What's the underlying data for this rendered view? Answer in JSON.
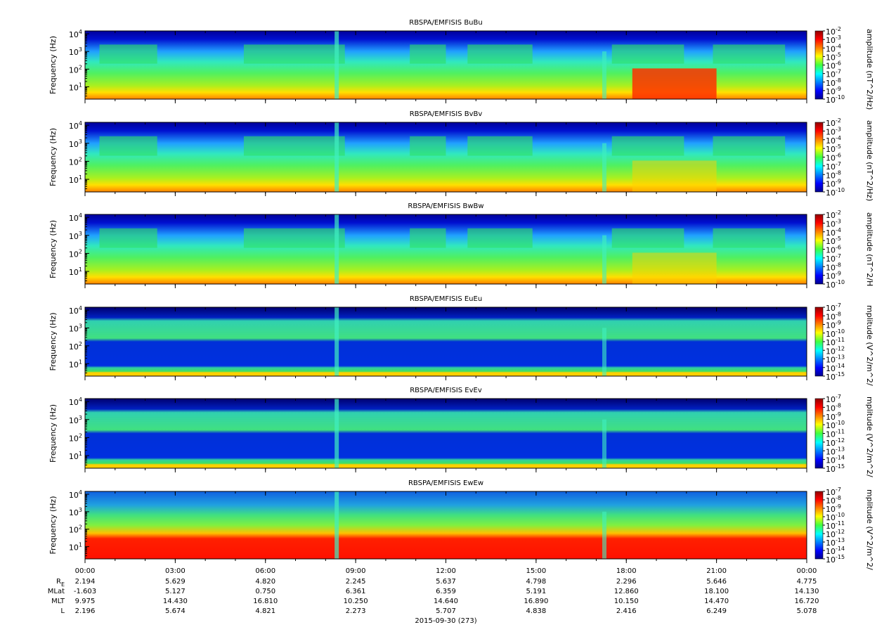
{
  "x_axis": {
    "xlim": [
      0,
      24
    ],
    "xticks": [
      {
        "value": 0,
        "label": "00:00"
      },
      {
        "value": 3,
        "label": "03:00"
      },
      {
        "value": 6,
        "label": "06:00"
      },
      {
        "value": 9,
        "label": "09:00"
      },
      {
        "value": 12,
        "label": "12:00"
      },
      {
        "value": 15,
        "label": "15:00"
      },
      {
        "value": 18,
        "label": "18:00"
      },
      {
        "value": 21,
        "label": "21:00"
      },
      {
        "value": 24,
        "label": "00:00"
      }
    ]
  },
  "chart_data": [
    {
      "type": "spectrogram",
      "title": "RBSPA/EMFISIS  BuBu",
      "ylabel": "Frequency (Hz)",
      "yscale": "log",
      "ylim": [
        2,
        14500
      ],
      "yticks": [
        {
          "value": 10,
          "label": "10^1"
        },
        {
          "value": 100,
          "label": "10^2"
        },
        {
          "value": 1000,
          "label": "10^3"
        },
        {
          "value": 10000,
          "label": "10^4"
        }
      ],
      "colorbar": {
        "label": "amplitude (nT^2/Hz)",
        "scale": "log",
        "lim": [
          1e-10,
          0.01
        ],
        "ticks": [
          {
            "value": 0.01,
            "label": "10^-2"
          },
          {
            "value": 0.001,
            "label": "10^-3"
          },
          {
            "value": 0.0001,
            "label": "10^-4"
          },
          {
            "value": 1e-05,
            "label": "10^-5"
          },
          {
            "value": 1e-06,
            "label": "10^-6"
          },
          {
            "value": 1e-07,
            "label": "10^-7"
          },
          {
            "value": 1e-08,
            "label": "10^-8"
          },
          {
            "value": 1e-09,
            "label": "10^-9"
          },
          {
            "value": 1e-10,
            "label": "10^-10"
          }
        ]
      }
    },
    {
      "type": "spectrogram",
      "title": "RBSPA/EMFISIS  BvBv",
      "ylabel": "Frequency (Hz)",
      "yscale": "log",
      "ylim": [
        2,
        14500
      ],
      "yticks": [
        {
          "value": 10,
          "label": "10^1"
        },
        {
          "value": 100,
          "label": "10^2"
        },
        {
          "value": 1000,
          "label": "10^3"
        },
        {
          "value": 10000,
          "label": "10^4"
        }
      ],
      "colorbar": {
        "label": "amplitude (nT^2/Hz)",
        "scale": "log",
        "lim": [
          1e-10,
          0.01
        ],
        "ticks": [
          {
            "value": 0.01,
            "label": "10^-2"
          },
          {
            "value": 0.001,
            "label": "10^-3"
          },
          {
            "value": 0.0001,
            "label": "10^-4"
          },
          {
            "value": 1e-05,
            "label": "10^-5"
          },
          {
            "value": 1e-06,
            "label": "10^-6"
          },
          {
            "value": 1e-07,
            "label": "10^-7"
          },
          {
            "value": 1e-08,
            "label": "10^-8"
          },
          {
            "value": 1e-09,
            "label": "10^-9"
          },
          {
            "value": 1e-10,
            "label": "10^-10"
          }
        ]
      }
    },
    {
      "type": "spectrogram",
      "title": "RBSPA/EMFISIS  BwBw",
      "ylabel": "Frequency (Hz)",
      "yscale": "log",
      "ylim": [
        2,
        14500
      ],
      "yticks": [
        {
          "value": 10,
          "label": "10^1"
        },
        {
          "value": 100,
          "label": "10^2"
        },
        {
          "value": 1000,
          "label": "10^3"
        },
        {
          "value": 10000,
          "label": "10^4"
        }
      ],
      "colorbar": {
        "label": "amplitude (nT^2/H",
        "scale": "log",
        "lim": [
          1e-10,
          0.01
        ],
        "ticks": [
          {
            "value": 0.01,
            "label": "10^-2"
          },
          {
            "value": 0.001,
            "label": "10^-3"
          },
          {
            "value": 0.0001,
            "label": "10^-4"
          },
          {
            "value": 1e-05,
            "label": "10^-5"
          },
          {
            "value": 1e-06,
            "label": "10^-6"
          },
          {
            "value": 1e-07,
            "label": "10^-7"
          },
          {
            "value": 1e-08,
            "label": "10^-8"
          },
          {
            "value": 1e-09,
            "label": "10^-9"
          },
          {
            "value": 1e-10,
            "label": "10^-10"
          }
        ]
      }
    },
    {
      "type": "spectrogram",
      "title": "RBSPA/EMFISIS  EuEu",
      "ylabel": "Frequency (Hz)",
      "yscale": "log",
      "ylim": [
        2,
        14500
      ],
      "yticks": [
        {
          "value": 10,
          "label": "10^1"
        },
        {
          "value": 100,
          "label": "10^2"
        },
        {
          "value": 1000,
          "label": "10^3"
        },
        {
          "value": 10000,
          "label": "10^4"
        }
      ],
      "colorbar": {
        "label": "mplitude (V^2/m^2/",
        "scale": "log",
        "lim": [
          1e-15,
          1e-07
        ],
        "ticks": [
          {
            "value": 1e-07,
            "label": "10^-7"
          },
          {
            "value": 1e-08,
            "label": "10^-8"
          },
          {
            "value": 1e-09,
            "label": "10^-9"
          },
          {
            "value": 1e-10,
            "label": "10^-10"
          },
          {
            "value": 1e-11,
            "label": "10^-11"
          },
          {
            "value": 1e-12,
            "label": "10^-12"
          },
          {
            "value": 1e-13,
            "label": "10^-13"
          },
          {
            "value": 1e-14,
            "label": "10^-14"
          },
          {
            "value": 1e-15,
            "label": "10^-15"
          }
        ]
      }
    },
    {
      "type": "spectrogram",
      "title": "RBSPA/EMFISIS  EvEv",
      "ylabel": "Frequency (Hz)",
      "yscale": "log",
      "ylim": [
        2,
        14500
      ],
      "yticks": [
        {
          "value": 10,
          "label": "10^1"
        },
        {
          "value": 100,
          "label": "10^2"
        },
        {
          "value": 1000,
          "label": "10^3"
        },
        {
          "value": 10000,
          "label": "10^4"
        }
      ],
      "colorbar": {
        "label": "mplitude (V^2/m^2/",
        "scale": "log",
        "lim": [
          1e-15,
          1e-07
        ],
        "ticks": [
          {
            "value": 1e-07,
            "label": "10^-7"
          },
          {
            "value": 1e-08,
            "label": "10^-8"
          },
          {
            "value": 1e-09,
            "label": "10^-9"
          },
          {
            "value": 1e-10,
            "label": "10^-10"
          },
          {
            "value": 1e-11,
            "label": "10^-11"
          },
          {
            "value": 1e-12,
            "label": "10^-12"
          },
          {
            "value": 1e-13,
            "label": "10^-13"
          },
          {
            "value": 1e-14,
            "label": "10^-14"
          },
          {
            "value": 1e-15,
            "label": "10^-15"
          }
        ]
      }
    },
    {
      "type": "spectrogram",
      "title": "RBSPA/EMFISIS  EwEw",
      "ylabel": "Frequency (Hz)",
      "yscale": "log",
      "ylim": [
        2,
        14500
      ],
      "yticks": [
        {
          "value": 10,
          "label": "10^1"
        },
        {
          "value": 100,
          "label": "10^2"
        },
        {
          "value": 1000,
          "label": "10^3"
        },
        {
          "value": 10000,
          "label": "10^4"
        }
      ],
      "colorbar": {
        "label": "mplitude (V^2/m^2/",
        "scale": "log",
        "lim": [
          1e-15,
          1e-07
        ],
        "ticks": [
          {
            "value": 1e-07,
            "label": "10^-7"
          },
          {
            "value": 1e-08,
            "label": "10^-8"
          },
          {
            "value": 1e-09,
            "label": "10^-9"
          },
          {
            "value": 1e-10,
            "label": "10^-10"
          },
          {
            "value": 1e-11,
            "label": "10^-11"
          },
          {
            "value": 1e-12,
            "label": "10^-12"
          },
          {
            "value": 1e-13,
            "label": "10^-13"
          },
          {
            "value": 1e-14,
            "label": "10^-14"
          },
          {
            "value": 1e-15,
            "label": "10^-15"
          }
        ]
      }
    }
  ],
  "ephemeris": {
    "rows": [
      {
        "label": "R_E",
        "values": [
          "2.194",
          "5.629",
          "4.820",
          "2.245",
          "5.637",
          "4.798",
          "2.296",
          "5.646",
          "4.775"
        ]
      },
      {
        "label": "MLat",
        "values": [
          "-1.603",
          "5.127",
          "0.750",
          "6.361",
          "6.359",
          "5.191",
          "12.860",
          "18.100",
          "14.130"
        ]
      },
      {
        "label": "MLT",
        "values": [
          "9.975",
          "14.430",
          "16.810",
          "10.250",
          "14.640",
          "16.890",
          "10.150",
          "14.470",
          "16.720"
        ]
      },
      {
        "label": "L",
        "values": [
          "2.196",
          "5.674",
          "4.821",
          "2.273",
          "5.707",
          "4.838",
          "2.416",
          "6.249",
          "5.078"
        ]
      }
    ],
    "date": "2015-09-30 (273)"
  }
}
